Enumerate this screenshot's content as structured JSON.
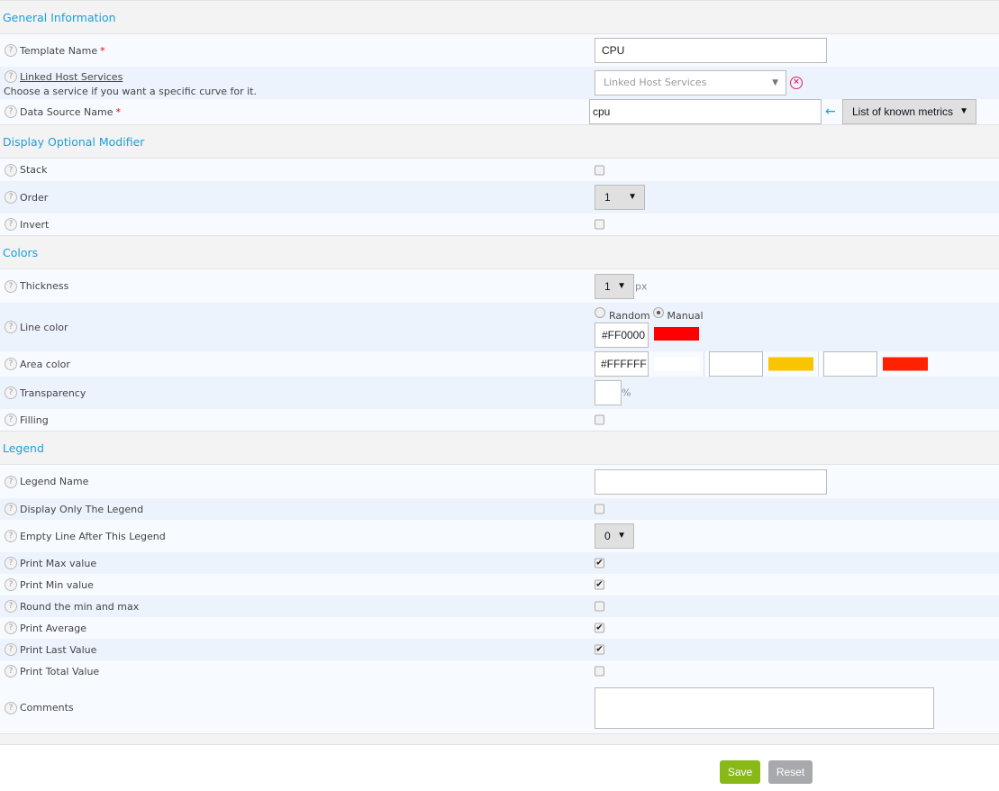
{
  "sections": {
    "general": "General Information",
    "display": "Display Optional Modifier",
    "colors": "Colors",
    "legend": "Legend"
  },
  "help_icon": "?",
  "required_mark": "*",
  "fields": {
    "template_name": {
      "label": "Template Name",
      "value": "CPU"
    },
    "linked_host": {
      "label": "Linked Host Services",
      "description": "Choose a service if you want a specific curve for it.",
      "placeholder": "Linked Host Services"
    },
    "data_source": {
      "label": "Data Source Name",
      "value": "cpu",
      "metrics_select": "List of known metrics"
    },
    "stack": {
      "label": "Stack",
      "checked": false
    },
    "order": {
      "label": "Order",
      "value": "1"
    },
    "invert": {
      "label": "Invert",
      "checked": false
    },
    "thickness": {
      "label": "Thickness",
      "value": "1",
      "unit": "px"
    },
    "line_color": {
      "label": "Line color",
      "random_label": "Random",
      "manual_label": "Manual",
      "selected": "Manual",
      "value": "#FF0000",
      "swatch": "#FF0000"
    },
    "area_color": {
      "label": "Area color",
      "value": "#FFFFFF",
      "swatch": "#FFFFFF",
      "value2": "",
      "swatch2": "#F8C500",
      "value3": "",
      "swatch3": "#FF2200"
    },
    "transparency": {
      "label": "Transparency",
      "value": "",
      "unit": "%"
    },
    "filling": {
      "label": "Filling",
      "checked": false
    },
    "legend_name": {
      "label": "Legend Name",
      "value": ""
    },
    "display_only_legend": {
      "label": "Display Only The Legend",
      "checked": false
    },
    "empty_line": {
      "label": "Empty Line After This Legend",
      "value": "0"
    },
    "print_max": {
      "label": "Print Max value",
      "checked": true
    },
    "print_min": {
      "label": "Print Min value",
      "checked": true
    },
    "round": {
      "label": "Round the min and max",
      "checked": false
    },
    "print_avg": {
      "label": "Print Average",
      "checked": true
    },
    "print_last": {
      "label": "Print Last Value",
      "checked": true
    },
    "print_total": {
      "label": "Print Total Value",
      "checked": false
    },
    "comments": {
      "label": "Comments",
      "value": ""
    }
  },
  "buttons": {
    "save": "Save",
    "reset": "Reset"
  },
  "colors": {
    "accent": "#1AA0DC",
    "save": "#88B917",
    "reset": "#A8A9AD",
    "required": "#EE0000"
  }
}
